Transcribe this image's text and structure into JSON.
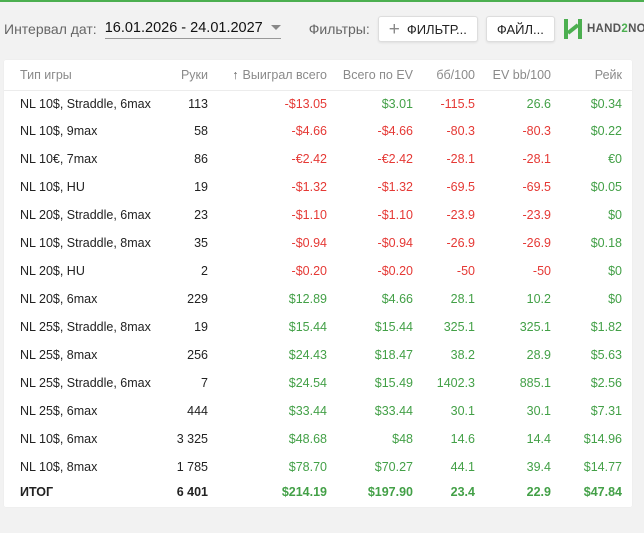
{
  "colors": {
    "accent": "#4caf50",
    "negative": "#e53935",
    "positive": "#43a047"
  },
  "toolbar": {
    "date_label": "Интервал дат:",
    "date_value": "16.01.2026 - 24.01.2027",
    "filters_label": "Фильтры:",
    "filter_button": "ФИЛЬТР...",
    "file_button": "ФАЙЛ...",
    "logo_hand": "HAND",
    "logo_two": "2",
    "logo_note": "NO"
  },
  "table": {
    "columns": [
      "Тип игры",
      "Руки",
      "Выиграл всего",
      "Всего по EV",
      "бб/100",
      "EV bb/100",
      "Рейк"
    ],
    "sort_icon": "arrow-up-icon",
    "rows": [
      [
        "NL 10$, Straddle, 6max",
        "113",
        "-$13.05",
        "$3.01",
        "-115.5",
        "26.6",
        "$0.34"
      ],
      [
        "NL 10$, 9max",
        "58",
        "-$4.66",
        "-$4.66",
        "-80.3",
        "-80.3",
        "$0.22"
      ],
      [
        "NL 10€, 7max",
        "86",
        "-€2.42",
        "-€2.42",
        "-28.1",
        "-28.1",
        "€0"
      ],
      [
        "NL 10$, HU",
        "19",
        "-$1.32",
        "-$1.32",
        "-69.5",
        "-69.5",
        "$0.05"
      ],
      [
        "NL 20$, Straddle, 6max",
        "23",
        "-$1.10",
        "-$1.10",
        "-23.9",
        "-23.9",
        "$0"
      ],
      [
        "NL 10$, Straddle, 8max",
        "35",
        "-$0.94",
        "-$0.94",
        "-26.9",
        "-26.9",
        "$0.18"
      ],
      [
        "NL 20$, HU",
        "2",
        "-$0.20",
        "-$0.20",
        "-50",
        "-50",
        "$0"
      ],
      [
        "NL 20$, 6max",
        "229",
        "$12.89",
        "$4.66",
        "28.1",
        "10.2",
        "$0"
      ],
      [
        "NL 25$, Straddle, 8max",
        "19",
        "$15.44",
        "$15.44",
        "325.1",
        "325.1",
        "$1.82"
      ],
      [
        "NL 25$, 8max",
        "256",
        "$24.43",
        "$18.47",
        "38.2",
        "28.9",
        "$5.63"
      ],
      [
        "NL 25$, Straddle, 6max",
        "7",
        "$24.54",
        "$15.49",
        "1402.3",
        "885.1",
        "$2.56"
      ],
      [
        "NL 25$, 6max",
        "444",
        "$33.44",
        "$33.44",
        "30.1",
        "30.1",
        "$7.31"
      ],
      [
        "NL 10$, 6max",
        "3 325",
        "$48.68",
        "$48",
        "14.6",
        "14.4",
        "$14.96"
      ],
      [
        "NL 10$, 8max",
        "1 785",
        "$78.70",
        "$70.27",
        "44.1",
        "39.4",
        "$14.77"
      ]
    ],
    "total": [
      "ИТОГ",
      "6 401",
      "$214.19",
      "$197.90",
      "23.4",
      "22.9",
      "$47.84"
    ]
  }
}
